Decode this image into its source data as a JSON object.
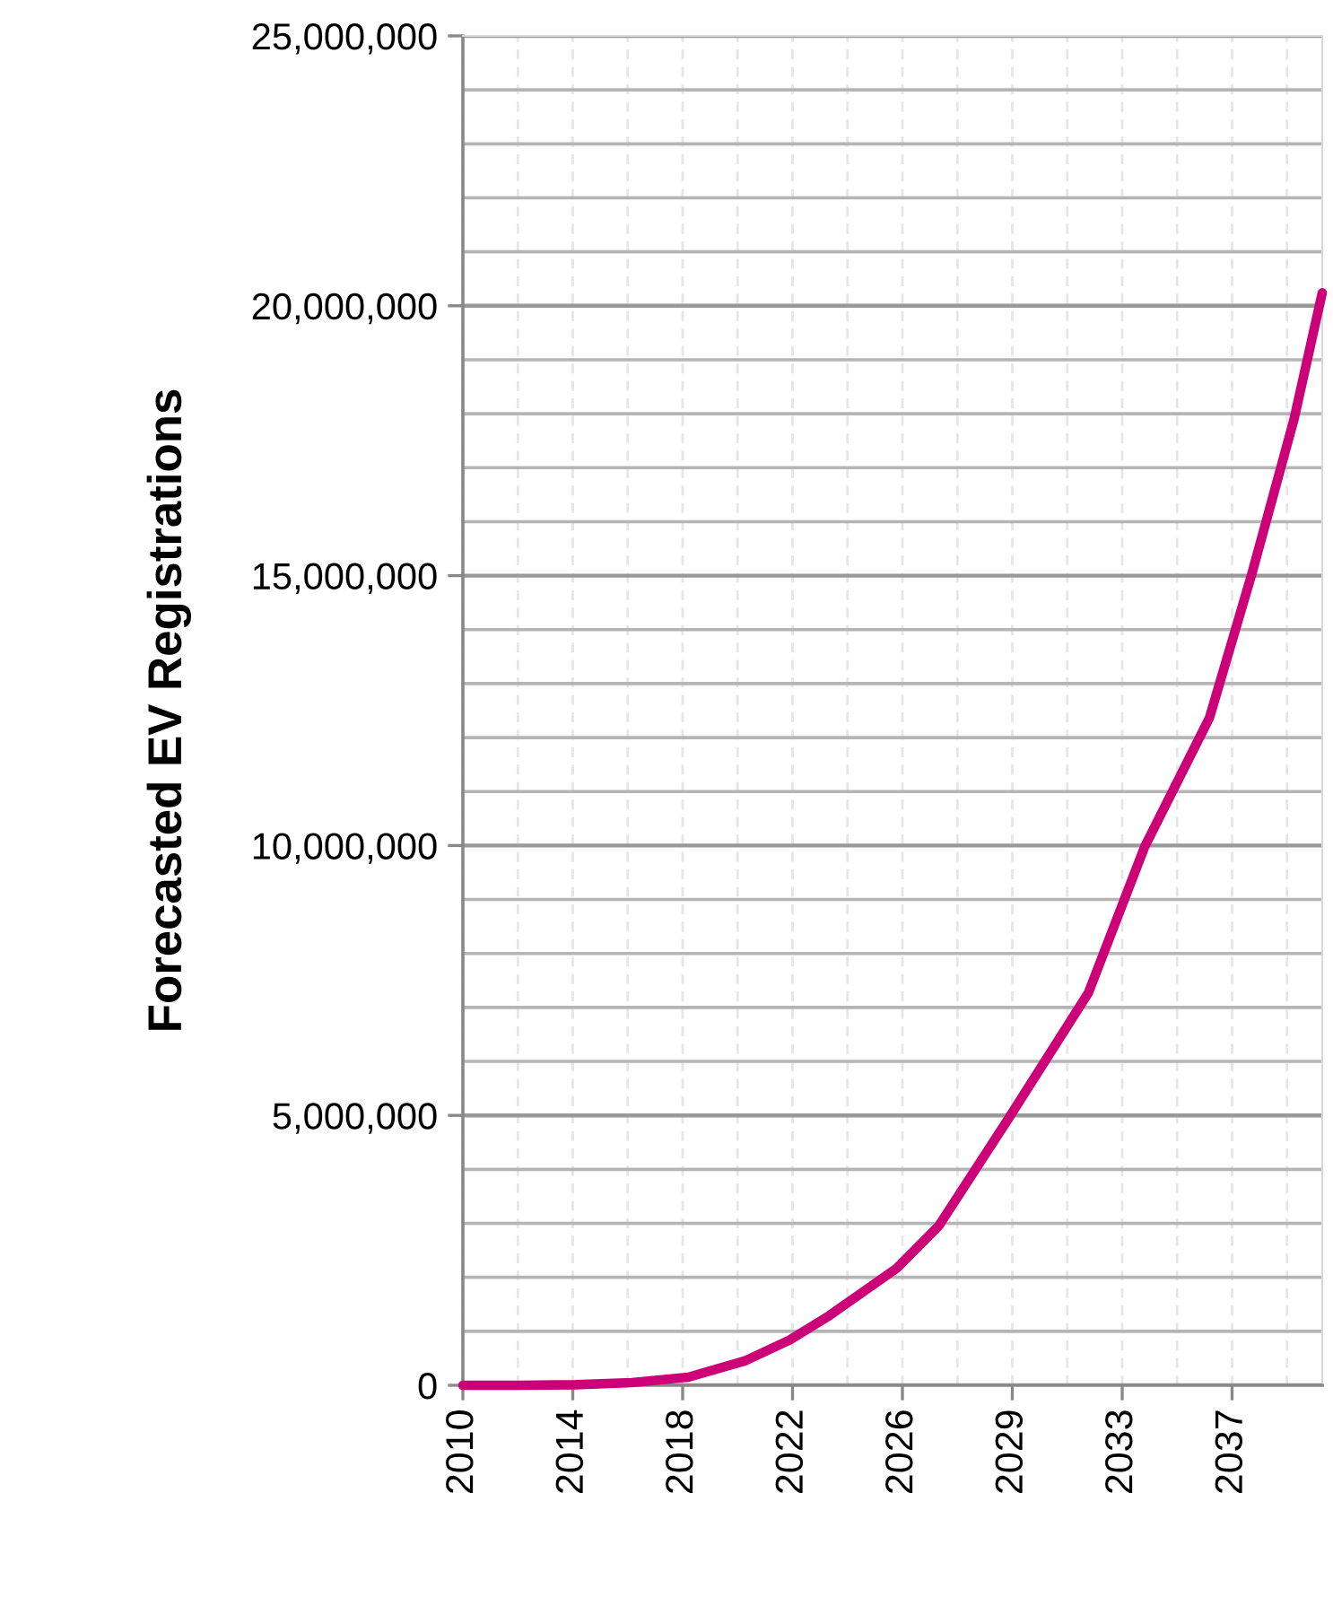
{
  "chart_data": {
    "type": "line",
    "ylabel": "Forecasted EV Registrations",
    "x": [
      2010,
      2012,
      2014,
      2016,
      2018,
      2020,
      2021.6,
      2023,
      2025.4,
      2026.9,
      2029.3,
      2032.2,
      2034.2,
      2036.5,
      2038,
      2039.5,
      2040.5
    ],
    "series": [
      {
        "color": "#cc0077",
        "values": [
          0,
          0,
          10000,
          50000,
          150000,
          450000,
          840000,
          1290000,
          2170000,
          2960000,
          4890000,
          7270000,
          9980000,
          12370000,
          15030000,
          17900000,
          20240000
        ]
      }
    ],
    "xlim": [
      2010,
      2040.5
    ],
    "xticks": [
      {
        "value": 2010,
        "label": "2010"
      },
      {
        "value": 2013.9,
        "label": "2014"
      },
      {
        "value": 2017.8,
        "label": "2018"
      },
      {
        "value": 2021.7,
        "label": "2022"
      },
      {
        "value": 2025.6,
        "label": "2026"
      },
      {
        "value": 2029.5,
        "label": "2029"
      },
      {
        "value": 2033.4,
        "label": "2033"
      },
      {
        "value": 2037.3,
        "label": "2037"
      }
    ],
    "ylim": [
      0,
      25000000
    ],
    "yticks": [
      {
        "value": 0,
        "label": "0"
      },
      {
        "value": 5000000,
        "label": "5,000,000"
      },
      {
        "value": 10000000,
        "label": "10,000,000"
      },
      {
        "value": 15000000,
        "label": "15,000,000"
      },
      {
        "value": 20000000,
        "label": "20,000,000"
      },
      {
        "value": 25000000,
        "label": "25,000,000"
      }
    ],
    "grid": true,
    "marker": "none",
    "line_style": "solid"
  }
}
